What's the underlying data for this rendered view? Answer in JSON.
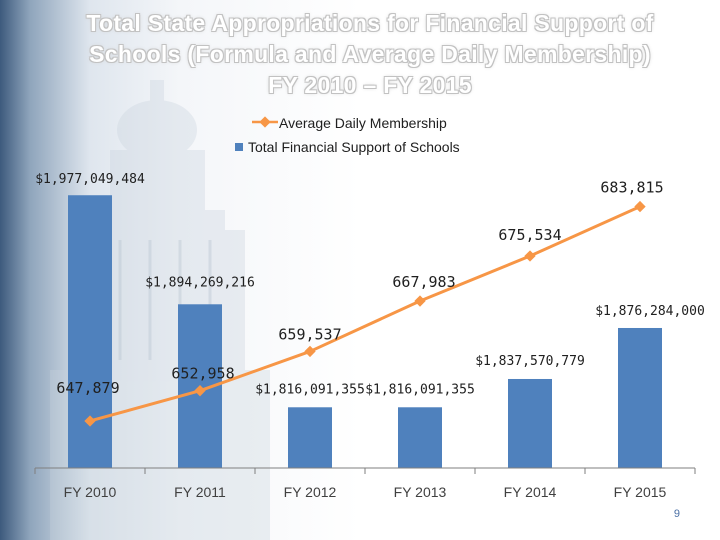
{
  "slide": {
    "title_line1": "Total State Appropriations for Financial Support of",
    "title_line2": "Schools (Formula and Average Daily Membership)",
    "title_line3": "FY 2010 – FY 2015",
    "page_number": "9"
  },
  "colors": {
    "bar": "#4f81bd",
    "line": "#f79646",
    "axis": "#7f7f7f"
  },
  "chart_data": {
    "type": "bar",
    "title": "Total State Appropriations for Financial Support of Schools (Formula and Average Daily Membership) FY 2010 – FY 2015",
    "categories": [
      "FY 2010",
      "FY 2011",
      "FY 2012",
      "FY 2013",
      "FY 2014",
      "FY 2015"
    ],
    "series": [
      {
        "name": "Total Financial Support of Schools",
        "type": "bar",
        "values": [
          1977049484,
          1894269216,
          1816091355,
          1816091355,
          1837570779,
          1876284000
        ],
        "labels": [
          "$1,977,049,484",
          "$1,894,269,216",
          "$1,816,091,355",
          "$1,816,091,355",
          "$1,837,570,779",
          "$1,876,284,000"
        ],
        "ylim": [
          1770000000,
          2000000000
        ]
      },
      {
        "name": "Average Daily Membership",
        "type": "line",
        "values": [
          647879,
          652958,
          659537,
          667983,
          675534,
          683815
        ],
        "labels": [
          "647,879",
          "652,958",
          "659,537",
          "667,983",
          "675,534",
          "683,815"
        ],
        "ylim": [
          640000,
          700000
        ]
      }
    ],
    "legend_position": "top-center",
    "xlabel": "",
    "ylabel": ""
  }
}
